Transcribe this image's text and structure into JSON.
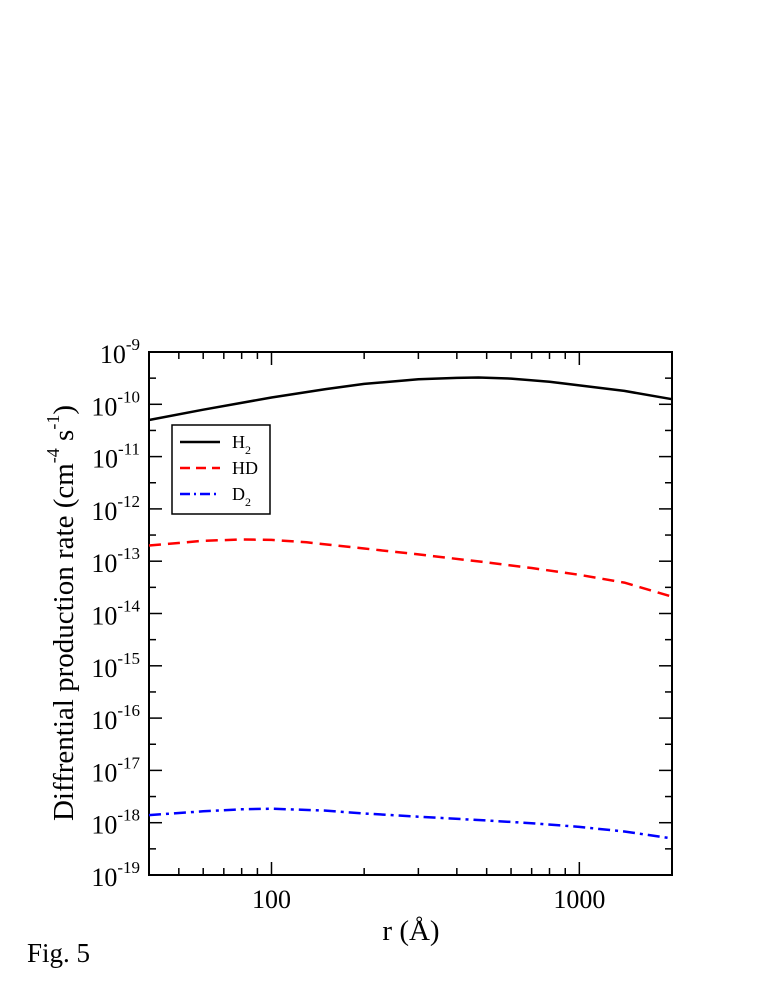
{
  "figure_caption": "Fig. 5",
  "chart_data": {
    "type": "line",
    "xlabel": "r (Å)",
    "ylabel": {
      "prefix": "Diffrential production rate (cm",
      "unit1_exp": "-4",
      "mid": " s",
      "unit2_exp": "-1",
      "suffix": ")"
    },
    "x_scale": "log",
    "y_scale": "log",
    "xlim": [
      40,
      2000
    ],
    "ylim": [
      1e-19,
      1e-09
    ],
    "x_ticks": [
      {
        "value": 100,
        "label": "100"
      },
      {
        "value": 1000,
        "label": "1000"
      }
    ],
    "y_ticks": [
      {
        "base": "10",
        "exp": "-9",
        "value": 1e-09
      },
      {
        "base": "10",
        "exp": "-10",
        "value": 1e-10
      },
      {
        "base": "10",
        "exp": "-11",
        "value": 1e-11
      },
      {
        "base": "10",
        "exp": "-12",
        "value": 1e-12
      },
      {
        "base": "10",
        "exp": "-13",
        "value": 1e-13
      },
      {
        "base": "10",
        "exp": "-14",
        "value": 1e-14
      },
      {
        "base": "10",
        "exp": "-15",
        "value": 1e-15
      },
      {
        "base": "10",
        "exp": "-16",
        "value": 1e-16
      },
      {
        "base": "10",
        "exp": "-17",
        "value": 1e-17
      },
      {
        "base": "10",
        "exp": "-18",
        "value": 1e-18
      },
      {
        "base": "10",
        "exp": "-19",
        "value": 1e-19
      }
    ],
    "legend_placement": "upper-left",
    "series": [
      {
        "name": "H2",
        "label_main": "H",
        "label_sub": "2",
        "color": "#000000",
        "dash": "solid",
        "x": [
          40,
          60,
          100,
          150,
          200,
          300,
          400,
          470,
          600,
          800,
          1000,
          1400,
          2000
        ],
        "y": [
          5e-11,
          7.9e-11,
          1.35e-10,
          1.95e-10,
          2.45e-10,
          3e-10,
          3.2e-10,
          3.25e-10,
          3.1e-10,
          2.7e-10,
          2.3e-10,
          1.8e-10,
          1.25e-10
        ]
      },
      {
        "name": "HD",
        "label_main": "HD",
        "label_sub": "",
        "color": "#ff0000",
        "dash": "dashed",
        "x": [
          40,
          60,
          80,
          100,
          130,
          200,
          300,
          500,
          700,
          1000,
          1400,
          2000
        ],
        "y": [
          2e-13,
          2.45e-13,
          2.6e-13,
          2.55e-13,
          2.3e-13,
          1.75e-13,
          1.35e-13,
          9.5e-14,
          7.4e-14,
          5.5e-14,
          3.9e-14,
          2.1e-14
        ]
      },
      {
        "name": "D2",
        "label_main": "D",
        "label_sub": "2",
        "color": "#0000ff",
        "dash": "dashdot",
        "x": [
          40,
          60,
          80,
          100,
          150,
          200,
          300,
          500,
          700,
          1000,
          1400,
          2000
        ],
        "y": [
          1.4e-18,
          1.65e-18,
          1.8e-18,
          1.85e-18,
          1.7e-18,
          1.5e-18,
          1.3e-18,
          1.1e-18,
          9.8e-19,
          8.3e-19,
          6.8e-19,
          5e-19
        ]
      }
    ]
  }
}
